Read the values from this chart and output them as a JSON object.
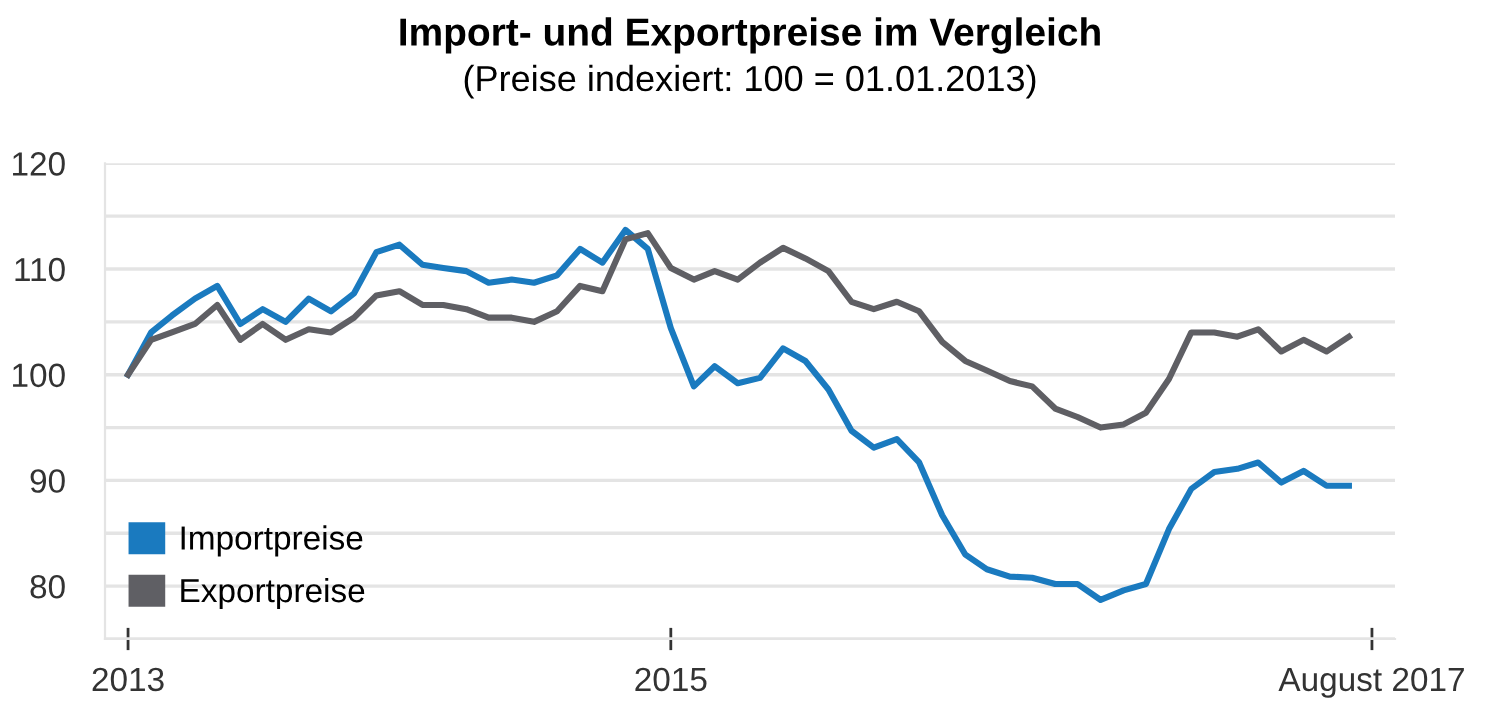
{
  "chart_data": {
    "type": "line",
    "title": "Import- und Exportpreise im Vergleich",
    "subtitle": "(Preise indexiert: 100 = 01.01.2013)",
    "x": [
      "2013-01",
      "2013-02",
      "2013-03",
      "2013-04",
      "2013-05",
      "2013-06",
      "2013-07",
      "2013-08",
      "2013-09",
      "2013-10",
      "2013-11",
      "2013-12",
      "2014-01",
      "2014-02",
      "2014-03",
      "2014-04",
      "2014-05",
      "2014-06",
      "2014-07",
      "2014-08",
      "2014-09",
      "2014-10",
      "2014-11",
      "2014-12",
      "2015-01",
      "2015-02",
      "2015-03",
      "2015-04",
      "2015-05",
      "2015-06",
      "2015-07",
      "2015-08",
      "2015-09",
      "2015-10",
      "2015-11",
      "2015-12",
      "2016-01",
      "2016-02",
      "2016-03",
      "2016-04",
      "2016-05",
      "2016-06",
      "2016-07",
      "2016-08",
      "2016-09",
      "2016-10",
      "2016-11",
      "2016-12",
      "2017-01",
      "2017-02",
      "2017-03",
      "2017-04",
      "2017-05",
      "2017-06",
      "2017-07"
    ],
    "series": [
      {
        "name": "Importpreise",
        "color": "#1a7abf",
        "values": [
          100.0,
          104.0,
          105.6,
          107.2,
          108.4,
          104.8,
          106.2,
          105.0,
          107.2,
          106.0,
          107.7,
          111.6,
          112.3,
          110.4,
          110.1,
          109.8,
          108.7,
          109.0,
          108.7,
          109.4,
          111.9,
          110.6,
          113.7,
          111.9,
          104.4,
          98.9,
          100.8,
          99.2,
          99.7,
          102.5,
          101.3,
          98.6,
          94.7,
          93.1,
          93.9,
          91.7,
          86.7,
          83.0,
          81.6,
          80.9,
          80.8,
          80.2,
          80.2,
          78.7,
          79.6,
          80.2,
          85.4,
          89.2,
          90.8,
          91.1,
          91.7,
          89.8,
          90.9,
          89.5,
          89.5
        ]
      },
      {
        "name": "Exportpreise",
        "color": "#5f5f64",
        "values": [
          100.0,
          103.3,
          104.0,
          104.8,
          106.6,
          103.3,
          104.8,
          103.3,
          104.3,
          104.0,
          105.4,
          107.5,
          107.9,
          106.6,
          106.6,
          106.2,
          105.4,
          105.4,
          105.0,
          106.0,
          108.4,
          107.9,
          112.8,
          113.4,
          110.1,
          109.0,
          109.8,
          109.0,
          110.6,
          112.0,
          111.0,
          109.8,
          106.9,
          106.2,
          106.9,
          106.0,
          103.1,
          101.3,
          100.4,
          99.4,
          98.9,
          96.8,
          96.0,
          95.0,
          95.3,
          96.4,
          99.6,
          104.0,
          104.0,
          103.6,
          104.3,
          102.2,
          103.3,
          102.2,
          103.6
        ]
      }
    ],
    "xlim": [
      "2012-12-01",
      "2017-09-01"
    ],
    "xticks": [
      {
        "value": "2013-01-01",
        "label": "2013"
      },
      {
        "value": "2015-01-01",
        "label": "2015"
      },
      {
        "value": "2017-08-01",
        "label": "August 2017"
      }
    ],
    "ylim": [
      75,
      120
    ],
    "yticks": [
      {
        "value": 75,
        "label": null
      },
      80,
      {
        "value": 85,
        "label": null
      },
      90,
      {
        "value": 95,
        "label": null
      },
      100,
      {
        "value": 105,
        "label": null
      },
      110,
      {
        "value": 115,
        "label": null
      },
      120
    ],
    "grid": "y",
    "legend": "bottom left",
    "marker": "none",
    "line_style": "solid"
  }
}
